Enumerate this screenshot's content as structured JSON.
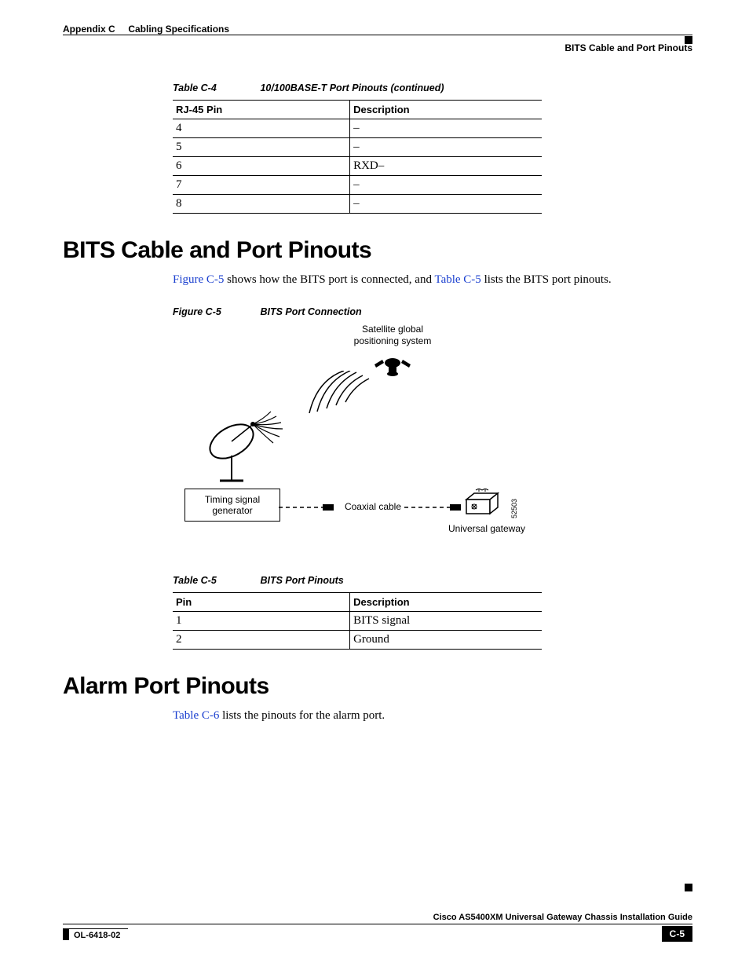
{
  "header": {
    "left_prefix": "Appendix C",
    "left_title": "Cabling Specifications",
    "right": "BITS Cable and Port Pinouts"
  },
  "table_c4": {
    "caption_num": "Table C-4",
    "caption_title": "10/100BASE-T Port Pinouts (continued)",
    "col1": "RJ-45 Pin",
    "col2": "Description",
    "rows": [
      {
        "pin": "4",
        "desc": "–"
      },
      {
        "pin": "5",
        "desc": "–"
      },
      {
        "pin": "6",
        "desc": "RXD–"
      },
      {
        "pin": "7",
        "desc": "–"
      },
      {
        "pin": "8",
        "desc": "–"
      }
    ]
  },
  "section1": {
    "title": "BITS Cable and Port Pinouts",
    "body_pre": "",
    "xref1": "Figure C-5",
    "body_mid1": " shows how the BITS port is connected, and ",
    "xref2": "Table C-5",
    "body_mid2": " lists the BITS port pinouts."
  },
  "figure_c5": {
    "caption_num": "Figure C-5",
    "caption_title": "BITS Port Connection",
    "label_sat": "Satellite global\npositioning system",
    "label_tsg": "Timing signal\ngenerator",
    "label_coax": "Coaxial cable",
    "label_ug": "Universal gateway",
    "side_num": "52503"
  },
  "table_c5": {
    "caption_num": "Table C-5",
    "caption_title": "BITS Port Pinouts",
    "col1": "Pin",
    "col2": "Description",
    "rows": [
      {
        "pin": "1",
        "desc": "BITS signal"
      },
      {
        "pin": "2",
        "desc": "Ground"
      }
    ]
  },
  "section2": {
    "title": "Alarm Port Pinouts",
    "xref1": "Table C-6",
    "body_mid1": " lists the pinouts for the alarm port."
  },
  "footer": {
    "guide": "Cisco AS5400XM Universal Gateway Chassis Installation Guide",
    "doc_num": "OL-6418-02",
    "page_num": "C-5"
  },
  "colors": {
    "link": "#1a3fcf",
    "text": "#000000",
    "bg": "#ffffff"
  }
}
